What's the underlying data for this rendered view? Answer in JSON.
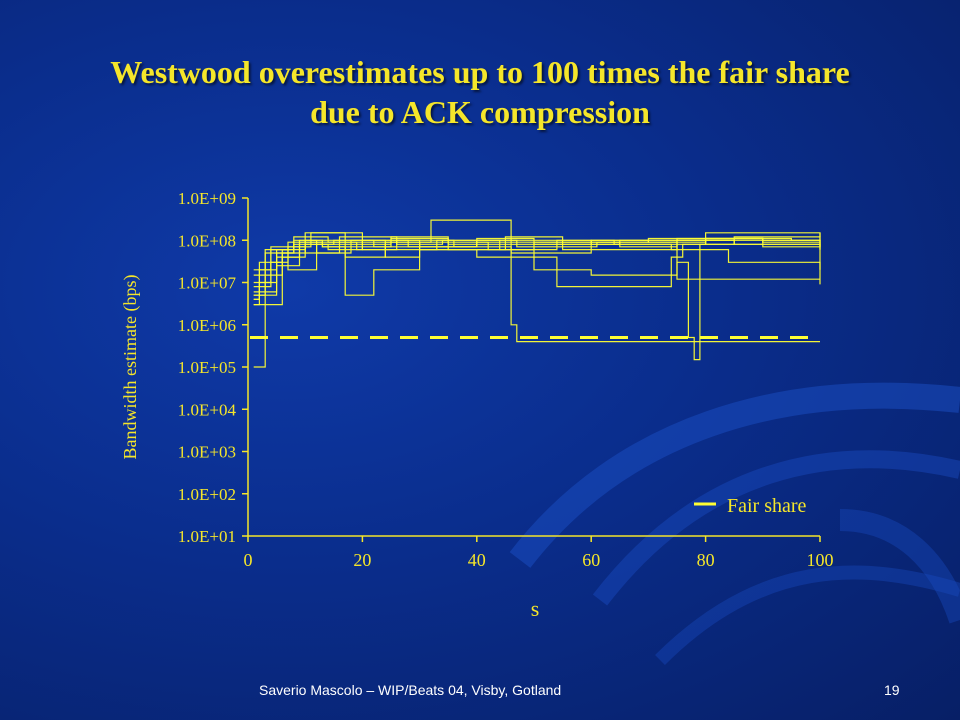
{
  "slide": {
    "title_line1": "Westwood overestimates up to 100 times the fair share",
    "title_line2": "due to ACK compression",
    "footer": "Saverio Mascolo  –  WIP/Beats 04,  Visby, Gotland",
    "page_number": "19"
  },
  "colors": {
    "accent": "#f5e62a",
    "background": "#0a2d8c",
    "series": "#ffff33"
  },
  "chart_data": {
    "type": "line",
    "title": "",
    "xlabel": "s",
    "ylabel": "Bandwidth estimate (bps)",
    "x_range": [
      0,
      100
    ],
    "x_ticks": [
      "0",
      "20",
      "40",
      "60",
      "80",
      "100"
    ],
    "y_scale": "log",
    "y_range": [
      10,
      1000000000
    ],
    "y_ticks": [
      "1.0E+01",
      "1.0E+02",
      "1.0E+03",
      "1.0E+04",
      "1.0E+05",
      "1.0E+06",
      "1.0E+07",
      "1.0E+08",
      "1.0E+09"
    ],
    "grid": false,
    "legend": {
      "placement": "bottom-right",
      "entries": [
        "Fair share"
      ]
    },
    "fair_share": {
      "name": "Fair share",
      "value": 500000,
      "style": "dashed"
    },
    "series": [
      {
        "x": [
          1,
          2,
          3,
          6,
          10,
          14,
          20,
          28,
          40,
          60,
          80,
          100
        ],
        "y": [
          100000,
          100000,
          3000000,
          50000000,
          80000000,
          60000000,
          100000000,
          70000000,
          100000000,
          80000000,
          150000000,
          120000000
        ]
      },
      {
        "x": [
          1,
          3,
          5,
          8,
          12,
          18,
          25,
          35,
          50,
          70,
          90,
          100
        ],
        "y": [
          5000000,
          20000000,
          60000000,
          100000000,
          50000000,
          80000000,
          120000000,
          60000000,
          90000000,
          110000000,
          70000000,
          90000000
        ]
      },
      {
        "x": [
          1,
          2,
          4,
          7,
          11,
          17,
          24,
          32,
          46,
          60,
          80,
          100
        ],
        "y": [
          4000000,
          8000000,
          30000000,
          70000000,
          150000000,
          40000000,
          90000000,
          300000000,
          50000000,
          100000000,
          80000000,
          60000000
        ]
      },
      {
        "x": [
          1,
          3,
          6,
          9,
          13,
          17,
          19,
          22,
          30,
          45,
          65,
          85,
          100
        ],
        "y": [
          3000000,
          15000000,
          40000000,
          100000000,
          70000000,
          5000000,
          5000000,
          20000000,
          60000000,
          80000000,
          100000000,
          120000000,
          70000000
        ]
      },
      {
        "x": [
          1,
          2,
          5,
          8,
          14,
          20,
          26,
          36,
          46,
          47,
          60,
          70,
          90,
          100
        ],
        "y": [
          6000000,
          10000000,
          50000000,
          120000000,
          90000000,
          60000000,
          100000000,
          70000000,
          1000000,
          400000,
          400000,
          400000,
          400000,
          400000
        ]
      },
      {
        "x": [
          1,
          4,
          7,
          12,
          18,
          24,
          30,
          40,
          55,
          75,
          95,
          100
        ],
        "y": [
          10000000,
          60000000,
          20000000,
          80000000,
          100000000,
          40000000,
          70000000,
          90000000,
          60000000,
          110000000,
          100000000,
          80000000
        ]
      },
      {
        "x": [
          1,
          3,
          8,
          15,
          22,
          30,
          42,
          50,
          60,
          75,
          77,
          78,
          79,
          85,
          100
        ],
        "y": [
          20000000,
          50000000,
          80000000,
          100000000,
          70000000,
          90000000,
          60000000,
          20000000,
          15000000,
          30000000,
          500000,
          150000,
          80000000,
          100000000,
          60000000
        ]
      },
      {
        "x": [
          1,
          2,
          4,
          10,
          16,
          26,
          34,
          44,
          54,
          64,
          74,
          84,
          100
        ],
        "y": [
          8000000,
          20000000,
          70000000,
          50000000,
          120000000,
          80000000,
          100000000,
          60000000,
          100000000,
          80000000,
          60000000,
          30000000,
          20000000
        ]
      },
      {
        "x": [
          1,
          5,
          10,
          20,
          30,
          40,
          50,
          60,
          70,
          80,
          90,
          100
        ],
        "y": [
          5000000,
          40000000,
          100000000,
          90000000,
          70000000,
          110000000,
          80000000,
          100000000,
          90000000,
          110000000,
          100000000,
          150000000
        ]
      },
      {
        "x": [
          1,
          2,
          6,
          10,
          20,
          30,
          40,
          54,
          70,
          74,
          76,
          80,
          90,
          100
        ],
        "y": [
          3000000,
          30000000,
          60000000,
          150000000,
          100000000,
          60000000,
          40000000,
          8000000,
          8000000,
          40000000,
          80000000,
          110000000,
          90000000,
          100000000
        ]
      },
      {
        "x": [
          1,
          3,
          7,
          13,
          25,
          35,
          45,
          55,
          65,
          75,
          85,
          100
        ],
        "y": [
          15000000,
          60000000,
          90000000,
          70000000,
          110000000,
          80000000,
          120000000,
          90000000,
          70000000,
          100000000,
          80000000,
          9000000
        ]
      },
      {
        "x": [
          1,
          2,
          5,
          9,
          19,
          33,
          47,
          61,
          75,
          89,
          100
        ],
        "y": [
          4000000,
          6000000,
          25000000,
          90000000,
          60000000,
          100000000,
          70000000,
          90000000,
          12000000,
          12000000,
          12000000
        ]
      }
    ]
  }
}
